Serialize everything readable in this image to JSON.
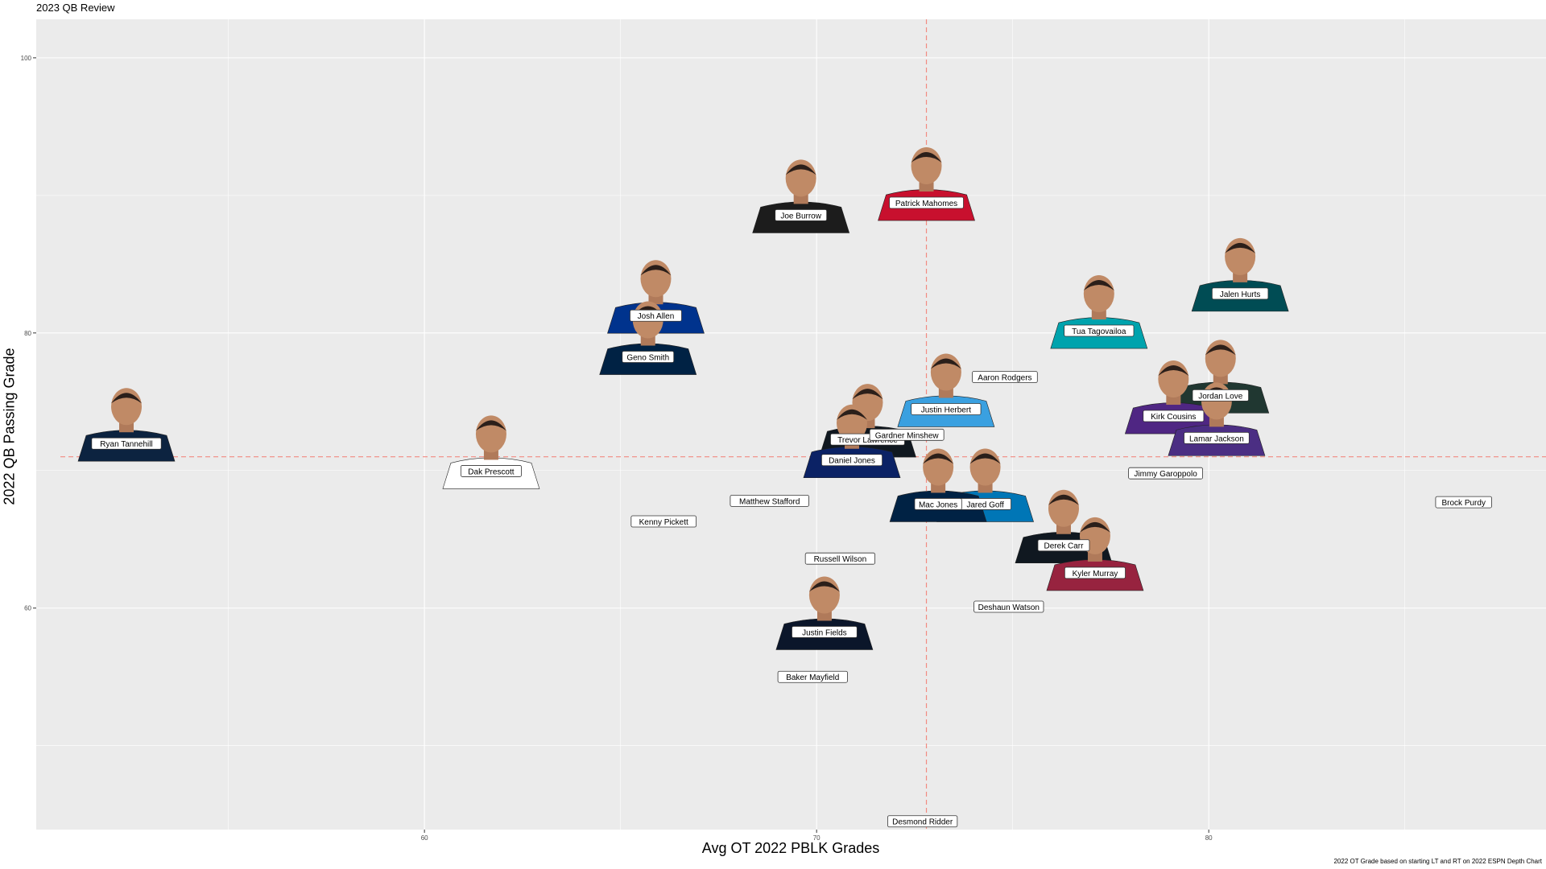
{
  "chart_data": {
    "type": "scatter",
    "title": "2023 QB Review",
    "xlabel": "Avg OT 2022 PBLK Grades",
    "ylabel": "2022 QB Passing Grade",
    "caption": "2022 OT Grade based on starting LT and RT on 2022 ESPN Depth Chart",
    "xlim": [
      50.1,
      88.6
    ],
    "ylim": [
      43.9,
      102.8
    ],
    "xticks": [
      60,
      70,
      80
    ],
    "yticks": [
      60,
      80,
      100
    ],
    "grid": true,
    "reference_lines": {
      "x": 72.8,
      "y": 71
    },
    "colors": {
      "panel": "#EBEBEB",
      "grid_major": "#FFFFFF",
      "reference_line": "#F28B82",
      "label_border": "#333333"
    },
    "points": [
      {
        "name": "Joe Burrow",
        "x": 69.6,
        "y": 90.2,
        "jersey": "#1c1c1c",
        "has_photo": true
      },
      {
        "name": "Patrick Mahomes",
        "x": 72.8,
        "y": 91.1,
        "jersey": "#c8102e",
        "has_photo": true
      },
      {
        "name": "Jalen Hurts",
        "x": 80.8,
        "y": 84.5,
        "jersey": "#004c54",
        "has_photo": true
      },
      {
        "name": "Josh Allen",
        "x": 65.9,
        "y": 82.9,
        "jersey": "#00338d",
        "has_photo": true
      },
      {
        "name": "Tua Tagovailoa",
        "x": 77.2,
        "y": 81.8,
        "jersey": "#00a3ad",
        "has_photo": true
      },
      {
        "name": "Geno Smith",
        "x": 65.7,
        "y": 79.9,
        "jersey": "#002244",
        "has_photo": true
      },
      {
        "name": "Justin Herbert",
        "x": 73.3,
        "y": 76.1,
        "jersey": "#3aa0e0",
        "has_photo": true
      },
      {
        "name": "Aaron Rodgers",
        "x": 74.8,
        "y": 76.8,
        "jersey": "#203731",
        "has_photo": false
      },
      {
        "name": "Jordan Love",
        "x": 80.3,
        "y": 77.1,
        "jersey": "#203731",
        "has_photo": true
      },
      {
        "name": "Kirk Cousins",
        "x": 79.1,
        "y": 75.6,
        "jersey": "#4f2683",
        "has_photo": true
      },
      {
        "name": "Ryan Tannehill",
        "x": 52.4,
        "y": 73.6,
        "jersey": "#0c2340",
        "has_photo": true
      },
      {
        "name": "Trevor Lawrence",
        "x": 71.3,
        "y": 73.9,
        "jersey": "#101820",
        "has_photo": true
      },
      {
        "name": "Lamar Jackson",
        "x": 80.2,
        "y": 74.0,
        "jersey": "#4b2e83",
        "has_photo": true
      },
      {
        "name": "Gardner Minshew",
        "x": 72.3,
        "y": 72.6,
        "jersey": "#004c54",
        "has_photo": false
      },
      {
        "name": "Dak Prescott",
        "x": 61.7,
        "y": 71.6,
        "jersey": "#ffffff",
        "has_photo": true
      },
      {
        "name": "Daniel Jones",
        "x": 70.9,
        "y": 72.4,
        "jersey": "#0b2265",
        "has_photo": true
      },
      {
        "name": "Jimmy Garoppolo",
        "x": 78.9,
        "y": 69.8,
        "jersey": "#aa0000",
        "has_photo": false
      },
      {
        "name": "Jared Goff",
        "x": 74.3,
        "y": 69.2,
        "jersey": "#0076b6",
        "has_photo": true
      },
      {
        "name": "Brock Purdy",
        "x": 86.5,
        "y": 67.7,
        "jersey": "#aa0000",
        "has_photo": false
      },
      {
        "name": "Matthew Stafford",
        "x": 68.8,
        "y": 67.8,
        "jersey": "#003594",
        "has_photo": false
      },
      {
        "name": "Mac Jones",
        "x": 73.1,
        "y": 69.2,
        "jersey": "#002244",
        "has_photo": true
      },
      {
        "name": "Kenny Pickett",
        "x": 66.1,
        "y": 66.3,
        "jersey": "#101820",
        "has_photo": false
      },
      {
        "name": "Derek Carr",
        "x": 76.3,
        "y": 66.2,
        "jersey": "#101820",
        "has_photo": true
      },
      {
        "name": "Kyler Murray",
        "x": 77.1,
        "y": 64.2,
        "jersey": "#97233f",
        "has_photo": true
      },
      {
        "name": "Russell Wilson",
        "x": 70.6,
        "y": 63.6,
        "jersey": "#fb4f14",
        "has_photo": false
      },
      {
        "name": "Deshaun Watson",
        "x": 74.9,
        "y": 60.1,
        "jersey": "#311d00",
        "has_photo": false
      },
      {
        "name": "Justin Fields",
        "x": 70.2,
        "y": 59.9,
        "jersey": "#0b162a",
        "has_photo": true
      },
      {
        "name": "Baker Mayfield",
        "x": 69.9,
        "y": 55.0,
        "jersey": "#d50a0a",
        "has_photo": false
      },
      {
        "name": "Desmond Ridder",
        "x": 72.7,
        "y": 44.5,
        "jersey": "#a71930",
        "has_photo": false
      }
    ]
  }
}
